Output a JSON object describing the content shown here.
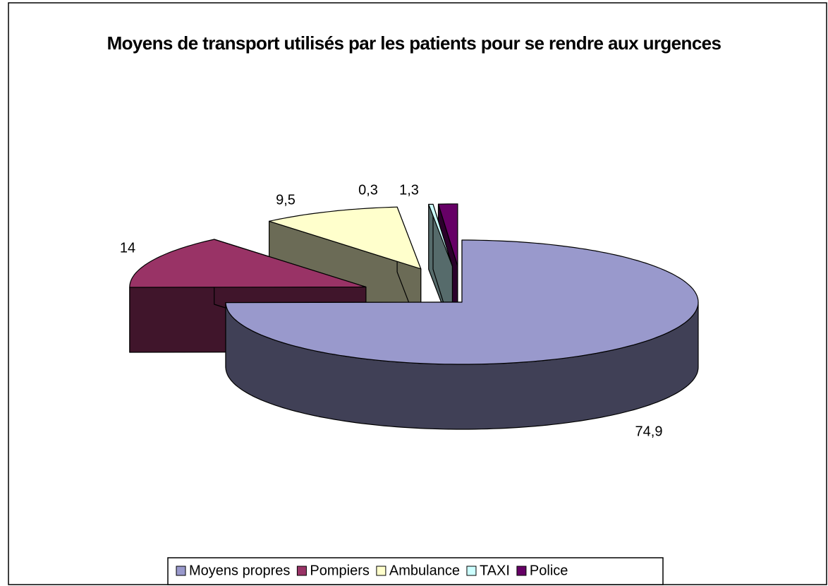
{
  "chart_data": {
    "type": "pie3d",
    "title": "Moyens de transport utilisés par les patients pour se rendre aux urgences",
    "categories": [
      "Moyens propres",
      "Pompiers",
      "Ambulance",
      "TAXI",
      "Police"
    ],
    "values": [
      74.9,
      14,
      9.5,
      0.3,
      1.3
    ],
    "value_labels": [
      "74,9",
      "14",
      "9,5",
      "0,3",
      "1,3"
    ],
    "colors": [
      "#9999cc",
      "#993366",
      "#ffffcc",
      "#ccffff",
      "#660066"
    ],
    "legend": "bottom"
  }
}
